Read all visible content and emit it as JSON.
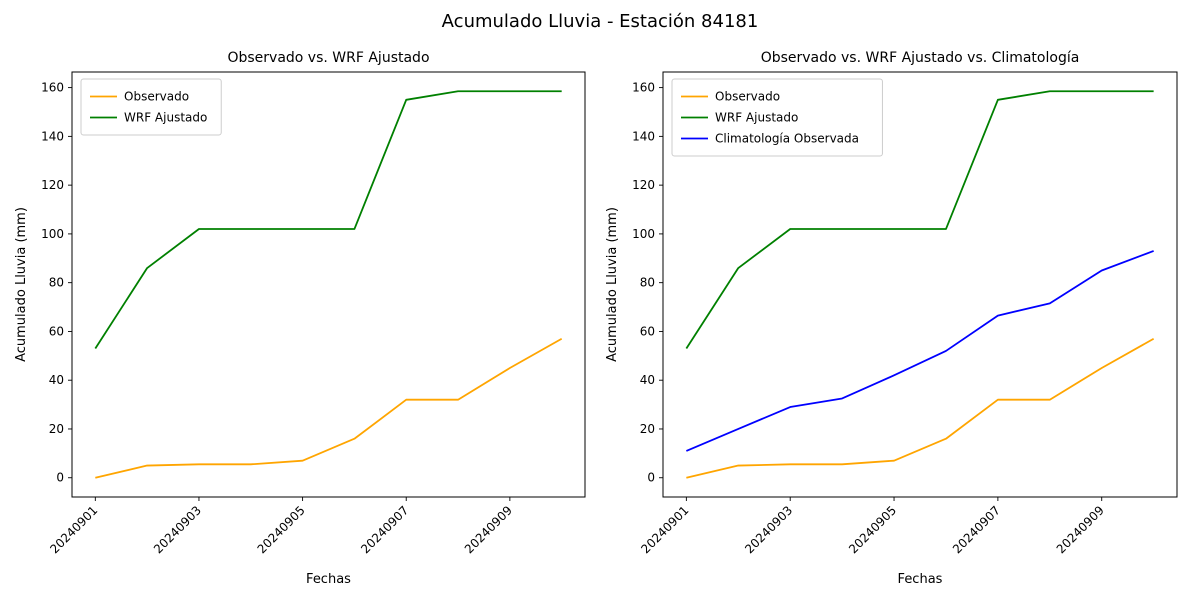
{
  "figure": {
    "suptitle": "Acumulado Lluvia - Estación 84181"
  },
  "chart_data": [
    {
      "type": "line",
      "title": "Observado vs. WRF Ajustado",
      "xlabel": "Fechas",
      "ylabel": "Acumulado Lluvia (mm)",
      "x": [
        "20240901",
        "20240902",
        "20240903",
        "20240904",
        "20240905",
        "20240906",
        "20240907",
        "20240908",
        "20240909",
        "20240910"
      ],
      "xtick_indices": [
        0,
        2,
        4,
        6,
        8
      ],
      "yticks": [
        0,
        20,
        40,
        60,
        80,
        100,
        120,
        140,
        160
      ],
      "ylim": [
        -7.9,
        166.4
      ],
      "grid": false,
      "legend_position": "upper left",
      "series": [
        {
          "name": "Observado",
          "color": "#ffa500",
          "values": [
            0,
            5,
            5.5,
            5.5,
            7,
            16,
            32,
            32,
            45,
            57
          ]
        },
        {
          "name": "WRF Ajustado",
          "color": "#008000",
          "values": [
            53,
            86,
            102,
            102,
            102,
            102,
            155,
            158.5,
            158.5,
            158.5
          ]
        }
      ]
    },
    {
      "type": "line",
      "title": "Observado vs. WRF Ajustado vs. Climatología",
      "xlabel": "Fechas",
      "ylabel": "Acumulado Lluvia (mm)",
      "x": [
        "20240901",
        "20240902",
        "20240903",
        "20240904",
        "20240905",
        "20240906",
        "20240907",
        "20240908",
        "20240909",
        "20240910"
      ],
      "xtick_indices": [
        0,
        2,
        4,
        6,
        8
      ],
      "yticks": [
        0,
        20,
        40,
        60,
        80,
        100,
        120,
        140,
        160
      ],
      "ylim": [
        -7.9,
        166.4
      ],
      "grid": false,
      "legend_position": "upper left",
      "series": [
        {
          "name": "Observado",
          "color": "#ffa500",
          "values": [
            0,
            5,
            5.5,
            5.5,
            7,
            16,
            32,
            32,
            45,
            57
          ]
        },
        {
          "name": "WRF Ajustado",
          "color": "#008000",
          "values": [
            53,
            86,
            102,
            102,
            102,
            102,
            155,
            158.5,
            158.5,
            158.5
          ]
        },
        {
          "name": "Climatología Observada",
          "color": "#0000ff",
          "values": [
            11,
            20,
            29,
            32.5,
            42,
            52,
            66.5,
            71.5,
            85,
            93
          ]
        }
      ]
    }
  ]
}
